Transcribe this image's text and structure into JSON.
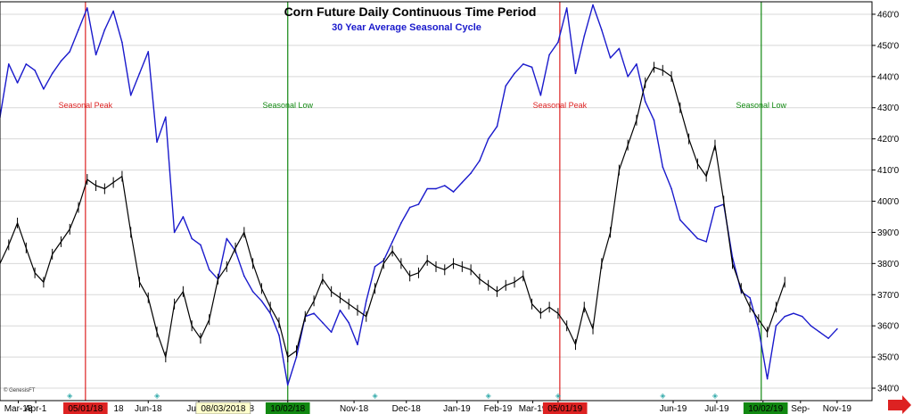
{
  "chart_data": {
    "type": "line",
    "title": "Corn Future  Daily Continuous Time Period",
    "subtitle": "30 Year Average Seasonal Cycle",
    "watermark": "© GenesisFT",
    "ylim": [
      336,
      464
    ],
    "yticks": [
      340,
      350,
      360,
      370,
      380,
      390,
      400,
      410,
      420,
      430,
      440,
      450,
      460
    ],
    "y_tick_suffix": "'0",
    "x_month_labels": [
      "Mar-18",
      "Apr-1",
      "Jun-18",
      "Jul-18",
      "Aug-18",
      "Sep-",
      "Nov-18",
      "Dec-18",
      "Jan-19",
      "Feb-19",
      "Mar-19",
      "Apr-1",
      "Jun-19",
      "Jul-19",
      "Aug-19",
      "Sep-",
      "Nov-19"
    ],
    "x_month_pos": [
      0.021,
      0.041,
      0.17,
      0.228,
      0.275,
      0.33,
      0.406,
      0.466,
      0.524,
      0.571,
      0.611,
      0.64,
      0.772,
      0.822,
      0.875,
      0.918,
      0.96
    ],
    "x_highlight_labels": [
      {
        "text": "05/01/18",
        "pos": 0.098,
        "bg": "#dd2222"
      },
      {
        "text": "08/03/2018",
        "pos": 0.256,
        "bg": "#ffffcc"
      },
      {
        "text": "10/02/18",
        "pos": 0.33,
        "bg": "#118811"
      },
      {
        "text": "05/01/19",
        "pos": 0.648,
        "bg": "#dd2222"
      },
      {
        "text": "10/02/19",
        "pos": 0.878,
        "bg": "#118811"
      }
    ],
    "x_tail_labels": [
      {
        "text": "8",
        "pos": 0.348
      },
      {
        "text": "18",
        "pos": 0.136
      },
      {
        "text": "8",
        "pos": 0.348
      },
      {
        "text": "9",
        "pos": 0.669
      },
      {
        "text": "9",
        "pos": 0.898
      }
    ],
    "vlines": [
      {
        "pos": 0.098,
        "color": "#dd2222",
        "label": "Seasonal Peak"
      },
      {
        "pos": 0.33,
        "color": "#118811",
        "label": "Seasonal Low"
      },
      {
        "pos": 0.642,
        "color": "#dd2222",
        "label": "Seasonal Peak"
      },
      {
        "pos": 0.873,
        "color": "#118811",
        "label": "Seasonal Low"
      }
    ],
    "series": [
      {
        "color": "#1a1acc",
        "x": [
          0,
          0.01,
          0.02,
          0.03,
          0.04,
          0.05,
          0.06,
          0.07,
          0.08,
          0.09,
          0.1,
          0.11,
          0.12,
          0.13,
          0.14,
          0.15,
          0.16,
          0.17,
          0.18,
          0.19,
          0.2,
          0.21,
          0.22,
          0.23,
          0.24,
          0.25,
          0.26,
          0.27,
          0.28,
          0.29,
          0.3,
          0.31,
          0.32,
          0.33,
          0.34,
          0.35,
          0.36,
          0.37,
          0.38,
          0.39,
          0.4,
          0.41,
          0.42,
          0.43,
          0.44,
          0.45,
          0.46,
          0.47,
          0.48,
          0.49,
          0.5,
          0.51,
          0.52,
          0.53,
          0.54,
          0.55,
          0.56,
          0.57,
          0.58,
          0.59,
          0.6,
          0.61,
          0.62,
          0.63,
          0.64,
          0.65,
          0.66,
          0.67,
          0.68,
          0.69,
          0.7,
          0.71,
          0.72,
          0.73,
          0.74,
          0.75,
          0.76,
          0.77,
          0.78,
          0.79,
          0.8,
          0.81,
          0.82,
          0.83,
          0.84,
          0.85,
          0.86,
          0.87,
          0.88,
          0.89,
          0.9,
          0.91,
          0.92,
          0.93,
          0.94,
          0.95,
          0.96
        ],
        "y": [
          427,
          444,
          438,
          444,
          442,
          436,
          441,
          445,
          448,
          455,
          462,
          447,
          455,
          461,
          451,
          434,
          441,
          448,
          419,
          427,
          390,
          395,
          388,
          386,
          378,
          375,
          388,
          384,
          376,
          371,
          368,
          364,
          357,
          341,
          350,
          363,
          364,
          361,
          358,
          365,
          361,
          354,
          368,
          379,
          381,
          387,
          393,
          398,
          399,
          404,
          404,
          405,
          403,
          406,
          409,
          413,
          420,
          424,
          437,
          441,
          444,
          443,
          434,
          447,
          451,
          462,
          441,
          453,
          463,
          455,
          446,
          449,
          440,
          444,
          432,
          426,
          411,
          404,
          394,
          391,
          388,
          387,
          398,
          399,
          382,
          371,
          369,
          359,
          343,
          360,
          363,
          364,
          363,
          360,
          358,
          356,
          359
        ]
      },
      {
        "color": "#000000",
        "x": [
          0,
          0.01,
          0.02,
          0.03,
          0.04,
          0.05,
          0.06,
          0.07,
          0.08,
          0.09,
          0.1,
          0.11,
          0.12,
          0.13,
          0.14,
          0.15,
          0.16,
          0.17,
          0.18,
          0.19,
          0.2,
          0.21,
          0.22,
          0.23,
          0.24,
          0.25,
          0.26,
          0.27,
          0.28,
          0.29,
          0.3,
          0.31,
          0.32,
          0.33,
          0.34,
          0.35,
          0.36,
          0.37,
          0.38,
          0.39,
          0.4,
          0.41,
          0.42,
          0.43,
          0.44,
          0.45,
          0.46,
          0.47,
          0.48,
          0.49,
          0.5,
          0.51,
          0.52,
          0.53,
          0.54,
          0.55,
          0.56,
          0.57,
          0.58,
          0.59,
          0.6,
          0.61,
          0.62,
          0.63,
          0.64,
          0.65,
          0.66,
          0.67,
          0.68,
          0.69,
          0.7,
          0.71,
          0.72,
          0.73,
          0.74,
          0.75,
          0.76,
          0.77,
          0.78,
          0.79,
          0.8,
          0.81,
          0.82,
          0.83,
          0.84,
          0.85,
          0.86,
          0.87,
          0.88,
          0.89,
          0.9
        ],
        "y": [
          380,
          386,
          393,
          385,
          377,
          374,
          383,
          387,
          391,
          398,
          407,
          405,
          404,
          406,
          408,
          390,
          374,
          369,
          358,
          350,
          367,
          371,
          360,
          356,
          362,
          375,
          379,
          385,
          390,
          380,
          372,
          366,
          361,
          350,
          352,
          363,
          368,
          375,
          371,
          369,
          367,
          365,
          363,
          372,
          380,
          384,
          380,
          376,
          377,
          381,
          379,
          378,
          380,
          379,
          378,
          375,
          373,
          371,
          373,
          374,
          376,
          367,
          364,
          366,
          364,
          360,
          354,
          366,
          359,
          380,
          390,
          410,
          418,
          426,
          438,
          443,
          442,
          440,
          430,
          420,
          412,
          408,
          418,
          400,
          380,
          372,
          366,
          362,
          358,
          366,
          374
        ]
      }
    ]
  }
}
